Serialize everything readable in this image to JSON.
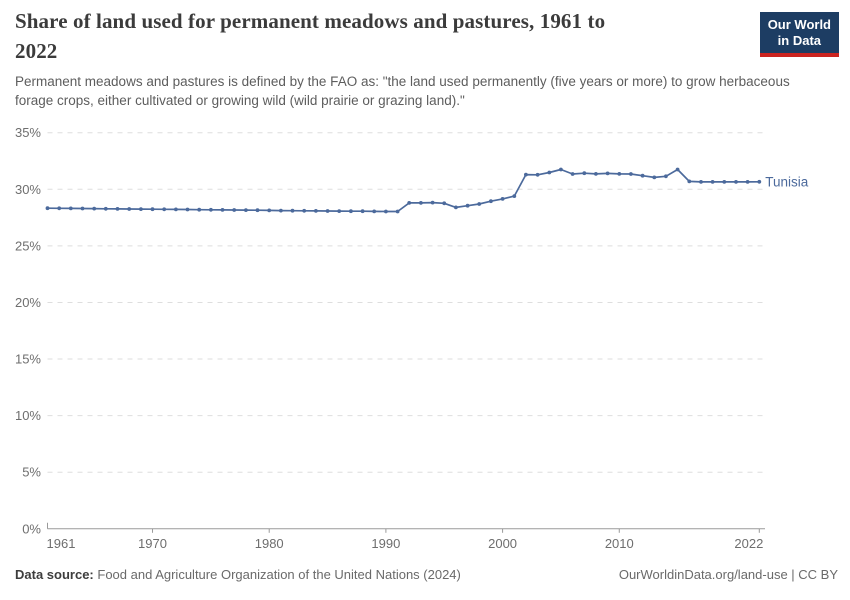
{
  "header": {
    "title": "Share of land used for permanent meadows and pastures, 1961 to 2022",
    "logo": {
      "line1": "Our World",
      "line2": "in Data",
      "bg_color": "#1d3d63",
      "accent_color": "#cb2420"
    }
  },
  "subtitle": "Permanent meadows and pastures is defined by the FAO as: \"the land used permanently (five years or more) to grow herbaceous forage crops, either cultivated or growing wild (wild prairie or grazing land).\"",
  "chart_data": {
    "type": "line",
    "title": "Share of land used for permanent meadows and pastures, 1961 to 2022",
    "xlabel": "",
    "ylabel": "",
    "unit": "%",
    "xlim": [
      1961,
      2022
    ],
    "ylim": [
      0,
      35
    ],
    "x_ticks": [
      1961,
      1970,
      1980,
      1990,
      2000,
      2010,
      2022
    ],
    "y_ticks": [
      0,
      5,
      10,
      15,
      20,
      25,
      30,
      35
    ],
    "grid": "horizontal-dashed",
    "legend_position": "end-of-line-label",
    "grid_color": "#dedede",
    "axis_color": "#9a9a9a",
    "series": [
      {
        "name": "Tunisia",
        "color": "#4c6a9c",
        "years": [
          1961,
          1962,
          1963,
          1964,
          1965,
          1966,
          1967,
          1968,
          1969,
          1970,
          1971,
          1972,
          1973,
          1974,
          1975,
          1976,
          1977,
          1978,
          1979,
          1980,
          1981,
          1982,
          1983,
          1984,
          1985,
          1986,
          1987,
          1988,
          1989,
          1990,
          1991,
          1992,
          1993,
          1994,
          1995,
          1996,
          1997,
          1998,
          1999,
          2000,
          2001,
          2002,
          2003,
          2004,
          2005,
          2006,
          2007,
          2008,
          2009,
          2010,
          2011,
          2012,
          2013,
          2014,
          2015,
          2016,
          2017,
          2018,
          2019,
          2020,
          2021,
          2022
        ],
        "values": [
          28.33,
          28.32,
          28.31,
          28.3,
          28.29,
          28.28,
          28.27,
          28.26,
          28.25,
          28.24,
          28.23,
          28.22,
          28.21,
          28.2,
          28.19,
          28.18,
          28.17,
          28.16,
          28.15,
          28.13,
          28.12,
          28.11,
          28.1,
          28.09,
          28.08,
          28.07,
          28.06,
          28.06,
          28.05,
          28.04,
          28.04,
          28.8,
          28.8,
          28.82,
          28.76,
          28.4,
          28.55,
          28.7,
          28.95,
          29.15,
          29.4,
          31.3,
          31.28,
          31.48,
          31.75,
          31.35,
          31.42,
          31.36,
          31.4,
          31.36,
          31.35,
          31.2,
          31.05,
          31.15,
          31.75,
          30.7,
          30.65,
          30.65,
          30.65,
          30.65,
          30.65,
          30.66
        ]
      }
    ]
  },
  "footer": {
    "source_label": "Data source:",
    "source_text": "Food and Agriculture Organization of the United Nations (2024)",
    "credit": "OurWorldinData.org/land-use | CC BY"
  }
}
